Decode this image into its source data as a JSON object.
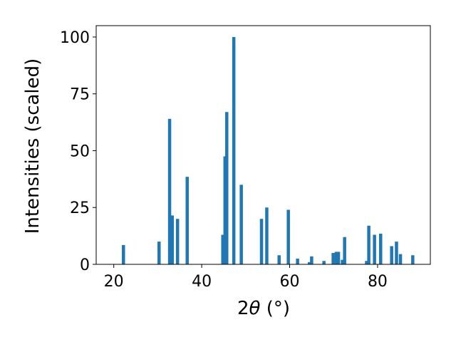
{
  "chart_data": {
    "type": "bar",
    "xlabel_parts": {
      "prefix": "2",
      "theta": "θ",
      "unit": " (°)"
    },
    "ylabel": "Intensities (scaled)",
    "xlim": [
      16,
      92
    ],
    "ylim": [
      0,
      105
    ],
    "xticks": [
      20,
      40,
      60,
      80
    ],
    "yticks": [
      0,
      25,
      50,
      75,
      100
    ],
    "grid": false,
    "bar_color": "#1f77b4",
    "x": [
      22.2,
      30.3,
      32.7,
      33.3,
      34.5,
      36.7,
      44.8,
      45.3,
      45.7,
      47.3,
      49.0,
      53.6,
      54.8,
      57.6,
      59.7,
      61.8,
      64.5,
      65.0,
      67.8,
      69.9,
      70.6,
      71.1,
      72.0,
      72.5,
      77.5,
      78.0,
      79.3,
      80.7,
      83.2,
      84.3,
      85.2,
      88.0
    ],
    "values": [
      8.5,
      10,
      64,
      21.5,
      20,
      38.5,
      13,
      47.5,
      67,
      100,
      35,
      20,
      25,
      4,
      24,
      2.5,
      1,
      3.5,
      1.5,
      5,
      5.5,
      5.5,
      2,
      12,
      1.5,
      17,
      13,
      13.5,
      8,
      10,
      4.5,
      4
    ]
  }
}
